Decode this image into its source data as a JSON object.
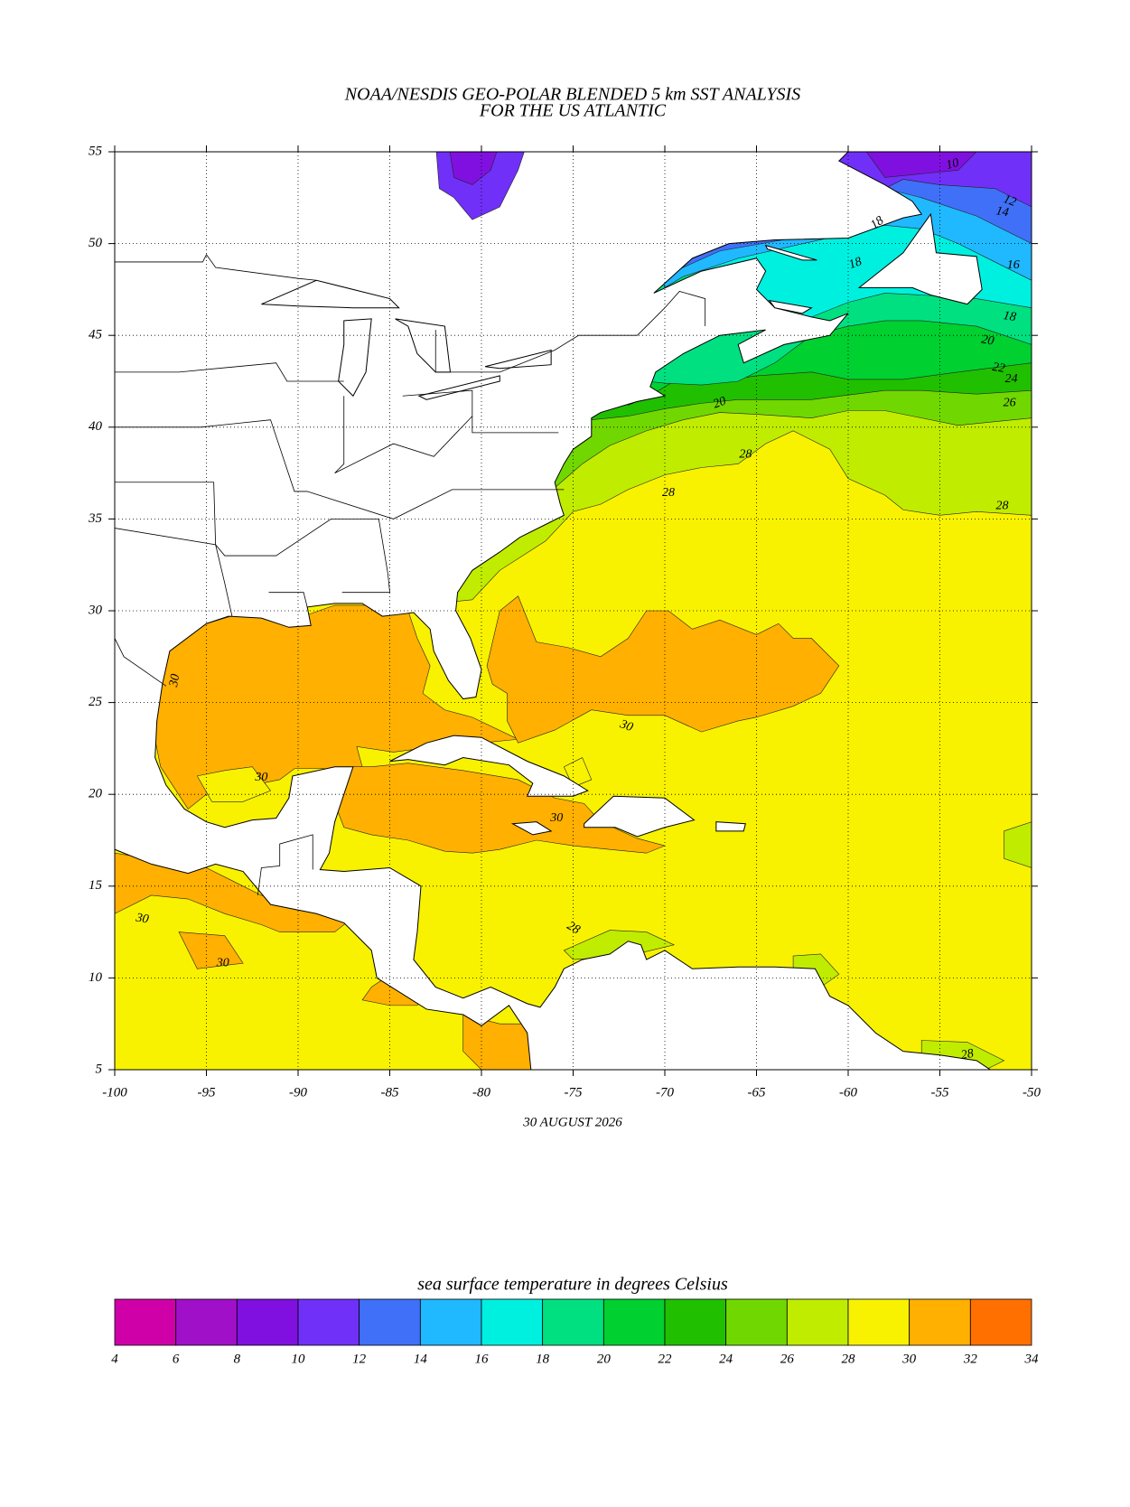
{
  "title": "NOAA/NESDIS GEO-POLAR BLENDED 5 km SST ANALYSIS",
  "subtitle": "FOR THE US ATLANTIC",
  "map": {
    "xlim": [
      -100,
      -50
    ],
    "ylim": [
      5,
      55
    ],
    "xticks": [
      -100,
      -95,
      -90,
      -85,
      -80,
      -75,
      -70,
      -65,
      -60,
      -55,
      -50
    ],
    "yticks": [
      5,
      10,
      15,
      20,
      25,
      30,
      35,
      40,
      45,
      50,
      55
    ],
    "grid": true,
    "date": "30 AUGUST 2026",
    "contour_labels": [
      10,
      12,
      14,
      16,
      18,
      18,
      18,
      20,
      22,
      24,
      26,
      20,
      28,
      28,
      28,
      30,
      30,
      30,
      30,
      30,
      30,
      28,
      28
    ]
  },
  "colorbar": {
    "label": "sea surface temperature in degrees Celsius",
    "ticks": [
      4,
      6,
      8,
      10,
      12,
      14,
      16,
      18,
      20,
      22,
      24,
      26,
      28,
      30,
      32,
      34
    ],
    "colors": [
      "#d000a8",
      "#a010c8",
      "#8010e0",
      "#7030f8",
      "#4070f8",
      "#20b8ff",
      "#00f0e0",
      "#00e080",
      "#00d030",
      "#20c000",
      "#70d800",
      "#c0ec00",
      "#f8f200",
      "#ffb000",
      "#ff7000"
    ]
  }
}
